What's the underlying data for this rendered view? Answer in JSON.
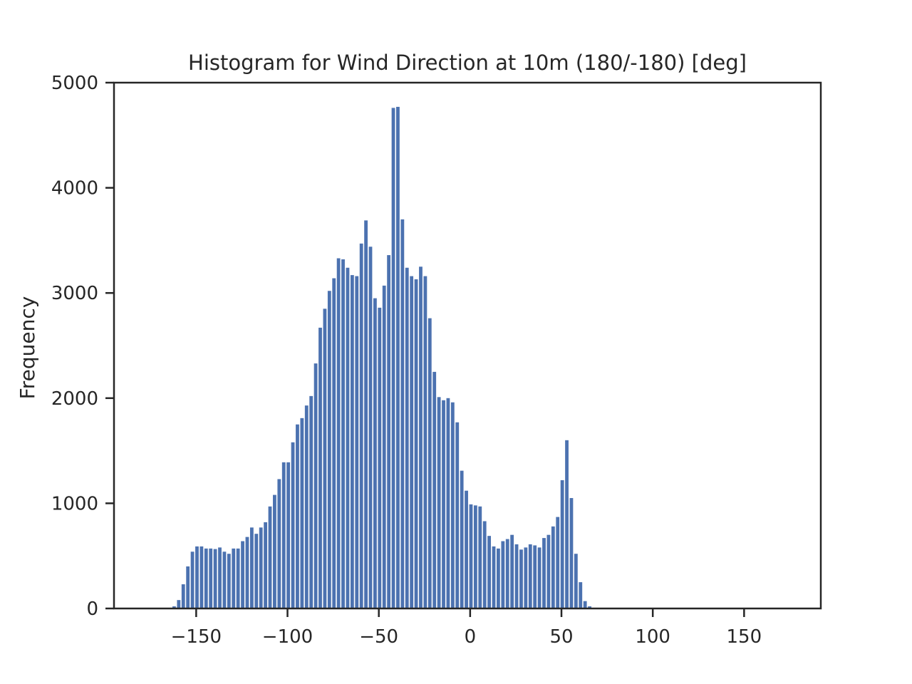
{
  "chart_data": {
    "type": "bar",
    "title": "Histogram for Wind Direction at 10m (180/-180) [deg]",
    "xlabel": "",
    "ylabel": "Frequency",
    "xlim": [
      -195,
      192
    ],
    "ylim": [
      0,
      5000
    ],
    "xticks": [
      -150,
      -100,
      -50,
      0,
      50,
      100,
      150
    ],
    "xtick_labels": [
      "−150",
      "−100",
      "−50",
      "0",
      "50",
      "100",
      "150"
    ],
    "yticks": [
      0,
      1000,
      2000,
      3000,
      4000,
      5000
    ],
    "ytick_labels": [
      "0",
      "1000",
      "2000",
      "3000",
      "4000",
      "5000"
    ],
    "bar_color": "#4c72b0",
    "bin_start": -163,
    "bin_width": 2.5,
    "values": [
      20,
      80,
      230,
      400,
      540,
      590,
      590,
      570,
      570,
      565,
      580,
      540,
      520,
      570,
      570,
      640,
      680,
      770,
      710,
      770,
      820,
      970,
      1080,
      1230,
      1390,
      1390,
      1580,
      1750,
      1810,
      1930,
      2020,
      2330,
      2670,
      2850,
      3020,
      3140,
      3330,
      3320,
      3240,
      3170,
      3160,
      3470,
      3690,
      3440,
      2950,
      2860,
      3070,
      3360,
      4760,
      4770,
      3700,
      3240,
      3160,
      3130,
      3250,
      3160,
      2760,
      2250,
      2010,
      1980,
      2000,
      1960,
      1770,
      1310,
      1120,
      990,
      980,
      970,
      830,
      690,
      590,
      570,
      640,
      660,
      700,
      610,
      560,
      580,
      610,
      600,
      580,
      670,
      700,
      780,
      870,
      1220,
      1600,
      1050,
      520,
      250,
      70,
      20
    ]
  }
}
